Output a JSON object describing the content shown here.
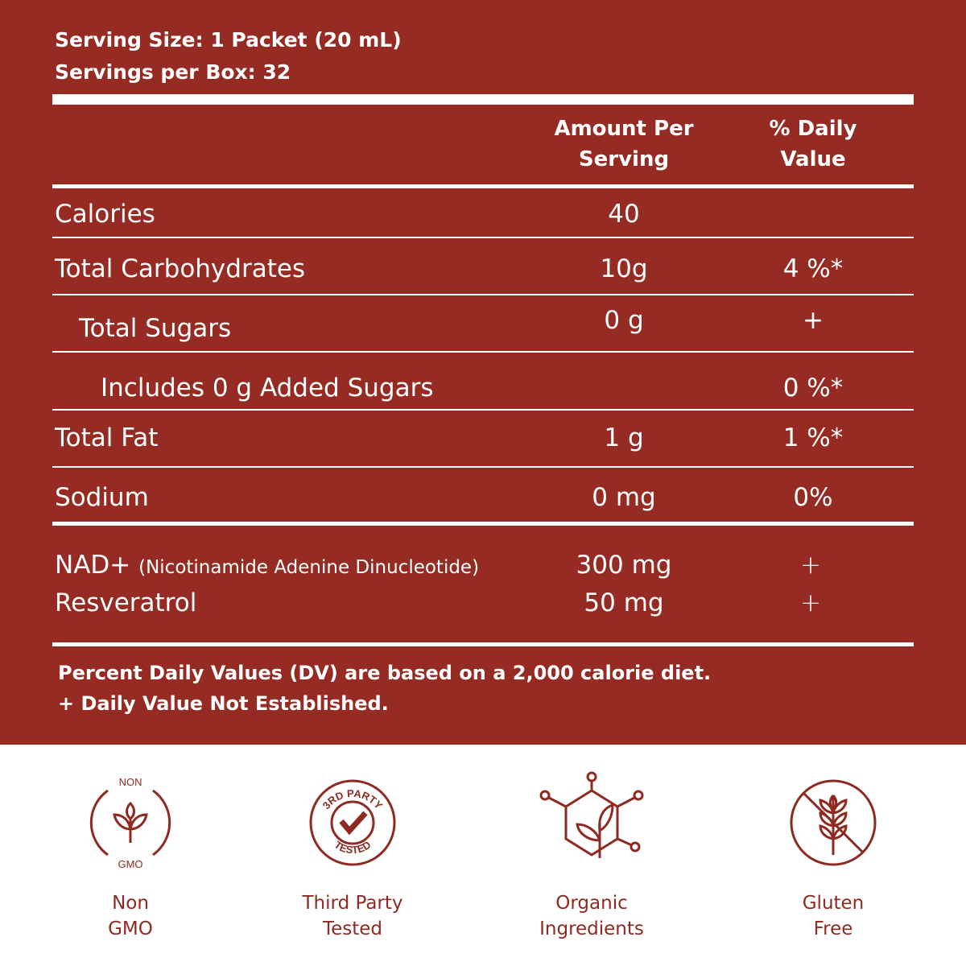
{
  "serving": {
    "size": "Serving Size: 1 Packet (20 mL)",
    "per_box": "Servings per Box: 32"
  },
  "header": {
    "amount": [
      "Amount Per",
      "Serving"
    ],
    "dv": [
      "% Daily",
      "Value"
    ]
  },
  "rows": [
    [
      "Calories",
      "40",
      ""
    ],
    [
      "Total Carbohydrates",
      "10g",
      "4 %*"
    ],
    [
      "Total Sugars",
      "0 g",
      "+"
    ],
    [
      "Includes 0 g Added Sugars",
      "",
      "0 %*"
    ],
    [
      "Total Fat",
      "1 g",
      "1 %*"
    ],
    [
      "Sodium",
      "0 mg",
      "0%"
    ]
  ],
  "extras": [
    {
      "name": "NAD+",
      "note": "(Nicotinamide Adenine Dinucleotide)",
      "amount": "300 mg",
      "dv": "+"
    },
    {
      "name": "Resveratrol",
      "amount": "50 mg",
      "dv": "+"
    }
  ],
  "footnotes": [
    "Percent Daily Values (DV) are based on a 2,000 calorie diet.",
    "+ Daily Value Not Established."
  ],
  "badges": [
    {
      "label": [
        "Non",
        "GMO"
      ],
      "icon_text": [
        "NON",
        "GMO"
      ]
    },
    {
      "label": [
        "Third Party",
        "Tested"
      ],
      "icon_text": [
        "3RD PARTY",
        "TESTED"
      ]
    },
    {
      "label": [
        "Organic",
        "Ingredients"
      ]
    },
    {
      "label": [
        "Gluten",
        "Free"
      ]
    }
  ]
}
